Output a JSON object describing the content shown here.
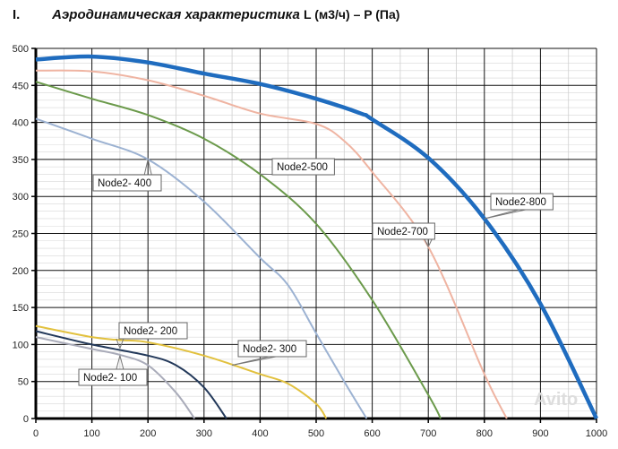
{
  "chart_data": {
    "type": "line",
    "title_number": "I.",
    "title": "Аэродинамическая характеристика",
    "title_units": "L (м3/ч) – P (Па)",
    "xlim": [
      0,
      1000
    ],
    "ylim": [
      0,
      500
    ],
    "xticks": [
      0,
      100,
      200,
      300,
      400,
      500,
      600,
      700,
      800,
      900,
      1000
    ],
    "yticks": [
      0,
      50,
      100,
      150,
      200,
      250,
      300,
      350,
      400,
      450,
      500
    ],
    "grid": true,
    "series": [
      {
        "name": "Node2-800",
        "color": "#1f6cbf",
        "points": [
          [
            0,
            485
          ],
          [
            100,
            489
          ],
          [
            200,
            481
          ],
          [
            300,
            466
          ],
          [
            400,
            452
          ],
          [
            500,
            432
          ],
          [
            580,
            412
          ],
          [
            600,
            404
          ],
          [
            700,
            352
          ],
          [
            800,
            270
          ],
          [
            900,
            155
          ],
          [
            1000,
            0
          ]
        ]
      },
      {
        "name": "Node2-700",
        "color": "#efb4a2",
        "points": [
          [
            0,
            470
          ],
          [
            100,
            469
          ],
          [
            200,
            457
          ],
          [
            300,
            436
          ],
          [
            400,
            412
          ],
          [
            500,
            398
          ],
          [
            550,
            375
          ],
          [
            600,
            333
          ],
          [
            700,
            232
          ],
          [
            800,
            60
          ],
          [
            840,
            0
          ]
        ]
      },
      {
        "name": "Node2-500",
        "color": "#6b9a4b",
        "points": [
          [
            0,
            455
          ],
          [
            100,
            432
          ],
          [
            200,
            410
          ],
          [
            300,
            378
          ],
          [
            400,
            330
          ],
          [
            500,
            263
          ],
          [
            600,
            160
          ],
          [
            700,
            32
          ],
          [
            722,
            0
          ]
        ]
      },
      {
        "name": "Node2- 400",
        "color": "#9cb2d2",
        "points": [
          [
            0,
            405
          ],
          [
            100,
            378
          ],
          [
            200,
            350
          ],
          [
            300,
            293
          ],
          [
            400,
            217
          ],
          [
            450,
            180
          ],
          [
            500,
            115
          ],
          [
            550,
            50
          ],
          [
            590,
            0
          ]
        ]
      },
      {
        "name": "Node2- 300",
        "color": "#e2c13e",
        "points": [
          [
            0,
            125
          ],
          [
            100,
            110
          ],
          [
            150,
            106
          ],
          [
            200,
            103
          ],
          [
            300,
            85
          ],
          [
            400,
            60
          ],
          [
            450,
            47
          ],
          [
            500,
            20
          ],
          [
            518,
            0
          ]
        ]
      },
      {
        "name": "Node2- 200",
        "color": "#23395a",
        "points": [
          [
            0,
            118
          ],
          [
            100,
            100
          ],
          [
            200,
            85
          ],
          [
            250,
            72
          ],
          [
            300,
            42
          ],
          [
            340,
            0
          ]
        ]
      },
      {
        "name": "Node2- 100",
        "color": "#a9abb9",
        "points": [
          [
            0,
            110
          ],
          [
            100,
            94
          ],
          [
            150,
            86
          ],
          [
            200,
            72
          ],
          [
            250,
            35
          ],
          [
            283,
            0
          ]
        ]
      }
    ],
    "watermark": "Avito"
  }
}
